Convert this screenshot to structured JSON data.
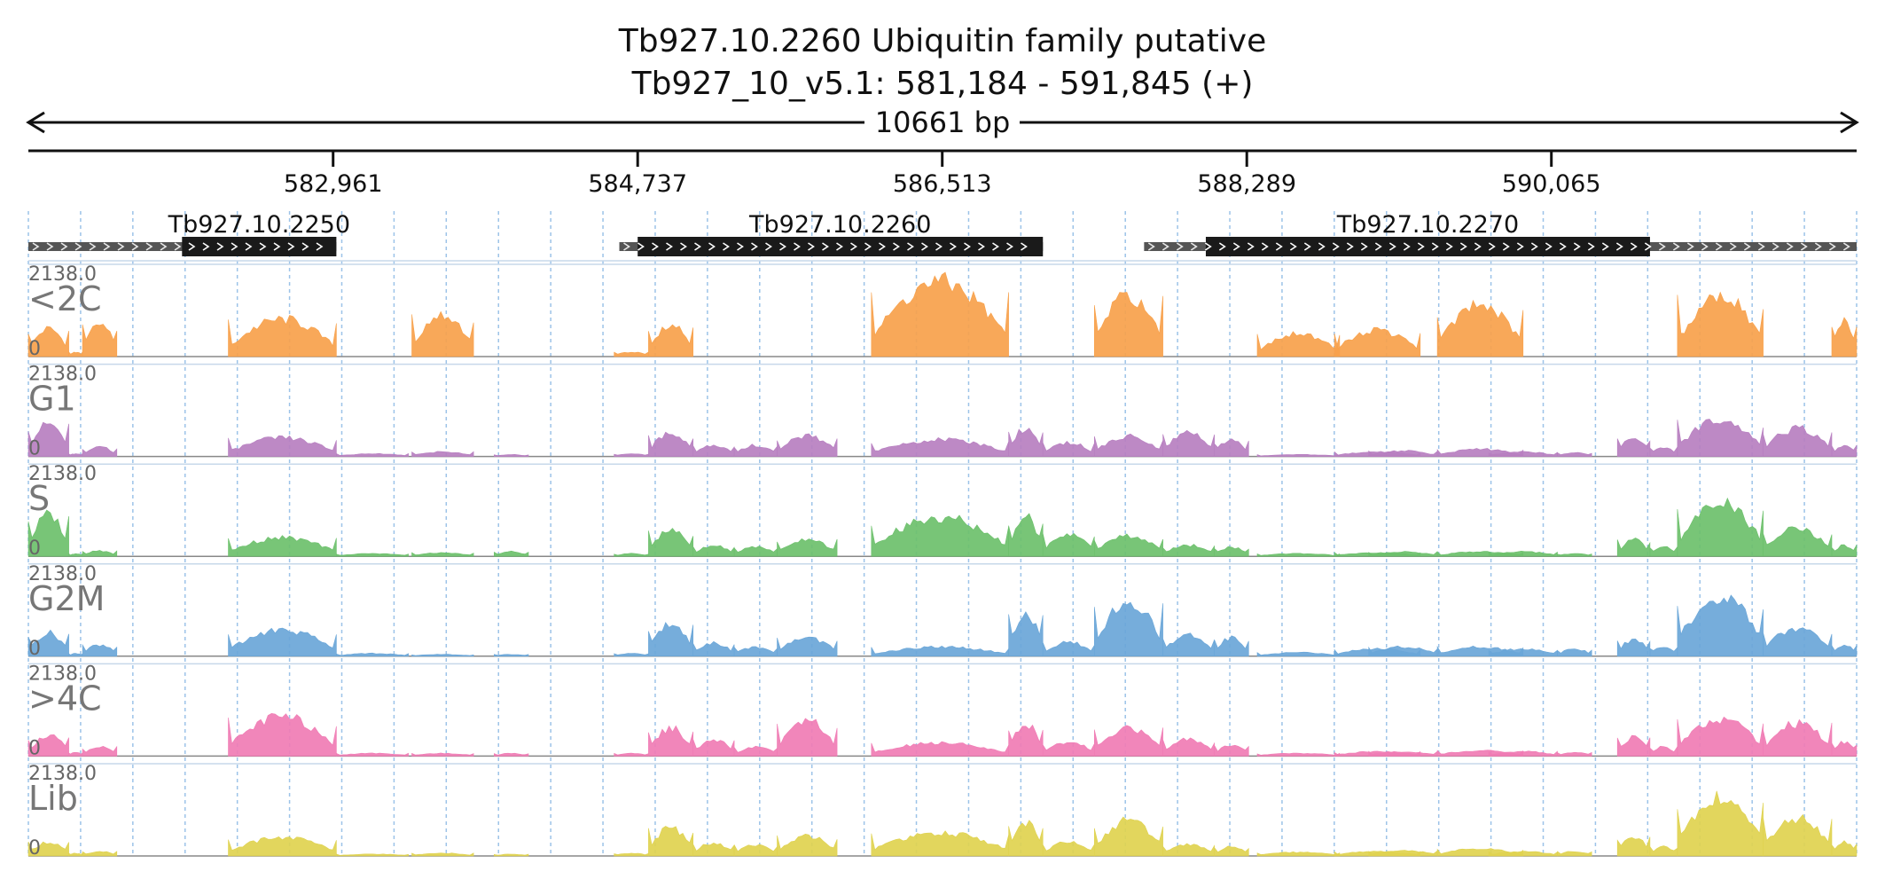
{
  "title": {
    "line1": "Tb927.10.2260  Ubiquitin family  putative",
    "line2": "Tb927_10_v5.1: 581,184 - 591,845 (+)"
  },
  "ruler": {
    "span_label": "10661 bp",
    "start": 581184,
    "end": 591845,
    "ticks": [
      {
        "pos": 582961,
        "label": "582,961"
      },
      {
        "pos": 584737,
        "label": "584,737"
      },
      {
        "pos": 586513,
        "label": "586,513"
      },
      {
        "pos": 588289,
        "label": "588,289"
      },
      {
        "pos": 590065,
        "label": "590,065"
      }
    ]
  },
  "colors": {
    "<2C": "#f7a14b",
    "G1": "#b77fc0",
    "S": "#6cc06b",
    "G2M": "#6aa6d8",
    ">4C": "#f07cb4",
    "Lib": "#dfd24f",
    "gene_cds": "#1a1a1a",
    "gene_utr": "#555555",
    "grid": "#9cc3e8"
  },
  "genes": [
    {
      "name": "Tb927.10.2250",
      "utr_start": 581184,
      "cds_start": 582080,
      "cds_end": 582980,
      "utr_end": 582980
    },
    {
      "name": "Tb927.10.2260",
      "utr_start": 584630,
      "cds_start": 584737,
      "cds_end": 587100,
      "utr_end": 587100
    },
    {
      "name": "Tb927.10.2270",
      "utr_start": 587690,
      "cds_start": 588050,
      "cds_end": 590640,
      "utr_end": 591845
    }
  ],
  "chart_data": {
    "type": "area",
    "xlim": [
      581184,
      591845
    ],
    "ylim": [
      0,
      2138.0
    ],
    "ymax_label": "2138.0",
    "ymin_label": "0",
    "regions": [
      [
        581184,
        581420,
        0.3,
        0.35,
        0.45,
        0.25,
        0.22,
        0.15
      ],
      [
        581420,
        581500,
        0.05,
        0.03,
        0.03,
        0.03,
        0.04,
        0.03
      ],
      [
        581500,
        581700,
        0.35,
        0.1,
        0.06,
        0.12,
        0.1,
        0.05
      ],
      [
        582350,
        582980,
        0.4,
        0.2,
        0.2,
        0.28,
        0.42,
        0.2
      ],
      [
        582980,
        583400,
        0.0,
        0.03,
        0.03,
        0.03,
        0.03,
        0.02
      ],
      [
        583420,
        583780,
        0.45,
        0.05,
        0.04,
        0.02,
        0.03,
        0.03
      ],
      [
        583900,
        584100,
        0.0,
        0.02,
        0.05,
        0.02,
        0.03,
        0.02
      ],
      [
        584600,
        584800,
        0.05,
        0.03,
        0.03,
        0.03,
        0.03,
        0.03
      ],
      [
        584800,
        585060,
        0.35,
        0.25,
        0.28,
        0.35,
        0.3,
        0.3
      ],
      [
        585060,
        585300,
        0.0,
        0.12,
        0.12,
        0.14,
        0.18,
        0.14
      ],
      [
        585300,
        585550,
        0.0,
        0.12,
        0.1,
        0.1,
        0.1,
        0.12
      ],
      [
        585550,
        585900,
        0.0,
        0.22,
        0.18,
        0.2,
        0.38,
        0.22
      ],
      [
        586100,
        586900,
        0.8,
        0.18,
        0.42,
        0.1,
        0.14,
        0.25
      ],
      [
        586900,
        587100,
        0.0,
        0.3,
        0.42,
        0.45,
        0.35,
        0.35
      ],
      [
        587100,
        587400,
        0.0,
        0.15,
        0.25,
        0.15,
        0.15,
        0.15
      ],
      [
        587400,
        587800,
        0.65,
        0.22,
        0.22,
        0.58,
        0.3,
        0.38
      ],
      [
        587800,
        588100,
        0.0,
        0.25,
        0.12,
        0.22,
        0.18,
        0.12
      ],
      [
        588100,
        588300,
        0.0,
        0.18,
        0.1,
        0.2,
        0.12,
        0.1
      ],
      [
        588350,
        588830,
        0.25,
        0.02,
        0.03,
        0.04,
        0.03,
        0.04
      ],
      [
        588800,
        589300,
        0.28,
        0.05,
        0.04,
        0.08,
        0.05,
        0.05
      ],
      [
        589000,
        589400,
        0.0,
        0.06,
        0.05,
        0.1,
        0.05,
        0.06
      ],
      [
        589400,
        589900,
        0.55,
        0.08,
        0.05,
        0.1,
        0.06,
        0.08
      ],
      [
        589700,
        590100,
        0.0,
        0.05,
        0.05,
        0.08,
        0.05,
        0.05
      ],
      [
        590100,
        590300,
        0.0,
        0.04,
        0.03,
        0.08,
        0.04,
        0.05
      ],
      [
        590450,
        590640,
        0.0,
        0.2,
        0.18,
        0.18,
        0.2,
        0.2
      ],
      [
        590640,
        590800,
        0.0,
        0.1,
        0.1,
        0.1,
        0.1,
        0.1
      ],
      [
        590800,
        591300,
        0.65,
        0.4,
        0.58,
        0.65,
        0.4,
        0.62
      ],
      [
        591300,
        591700,
        0.0,
        0.3,
        0.3,
        0.3,
        0.35,
        0.4
      ],
      [
        591700,
        591845,
        0.38,
        0.12,
        0.12,
        0.12,
        0.15,
        0.15
      ]
    ],
    "series": [
      {
        "name": "<2C"
      },
      {
        "name": "G1"
      },
      {
        "name": "S"
      },
      {
        "name": "G2M"
      },
      {
        "name": ">4C"
      },
      {
        "name": "Lib"
      }
    ]
  }
}
